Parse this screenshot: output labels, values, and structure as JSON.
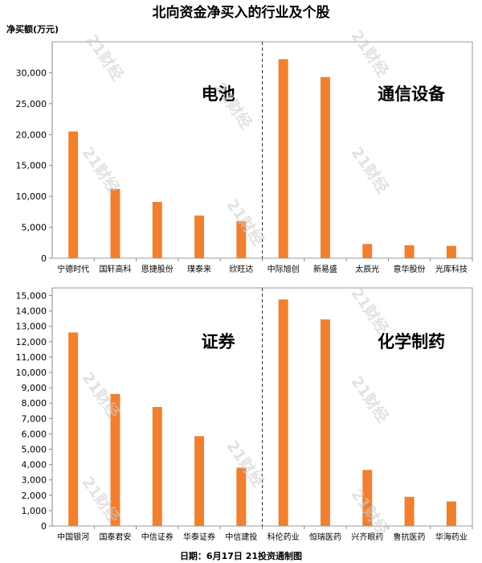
{
  "title": "北向资金净买入的行业及个股",
  "unit_label": "净买额(万元)",
  "footer": "日期：6月17日  21投资通制图",
  "watermark": "21财经",
  "colors": {
    "bar": "#f08030",
    "axis": "#888888",
    "frame": "#999999",
    "divider": "#333333"
  },
  "chart_data": [
    {
      "type": "bar",
      "title": "",
      "xlabel": "",
      "ylabel": "净买额(万元)",
      "ylim": [
        0,
        35000
      ],
      "yticks": [
        0,
        5000,
        10000,
        15000,
        20000,
        25000,
        30000
      ],
      "ytick_labels": [
        "0",
        "5,000",
        "10,000",
        "15,000",
        "20,000",
        "25,000",
        "30,000"
      ],
      "grid": false,
      "categories": [
        "宁德时代",
        "国轩高科",
        "恩捷股份",
        "璞泰来",
        "欣旺达",
        "中际旭创",
        "新易盛",
        "太辰光",
        "意华股份",
        "光库科技"
      ],
      "values": [
        20500,
        11200,
        9100,
        6900,
        6000,
        32200,
        29300,
        2300,
        2100,
        2000
      ],
      "groups": [
        "电池",
        "通信设备"
      ]
    },
    {
      "type": "bar",
      "title": "",
      "xlabel": "",
      "ylabel": "净买额(万元)",
      "ylim": [
        0,
        15500
      ],
      "yticks": [
        0,
        1000,
        2000,
        3000,
        4000,
        5000,
        6000,
        7000,
        8000,
        9000,
        10000,
        11000,
        12000,
        13000,
        14000,
        15000
      ],
      "ytick_labels": [
        "0",
        "1,000",
        "2,000",
        "3,000",
        "4,000",
        "5,000",
        "6,000",
        "7,000",
        "8,000",
        "9,000",
        "10,000",
        "11,000",
        "12,000",
        "13,000",
        "14,000",
        "15,000"
      ],
      "grid": false,
      "categories": [
        "中国银河",
        "国泰君安",
        "中信证券",
        "华泰证券",
        "中信建投",
        "科伦药业",
        "恒瑞医药",
        "兴齐眼药",
        "鲁抗医药",
        "华海药业"
      ],
      "values": [
        12600,
        8600,
        7750,
        5850,
        3800,
        14750,
        13450,
        3650,
        1900,
        1600
      ],
      "groups": [
        "证券",
        "化学制药"
      ]
    }
  ]
}
